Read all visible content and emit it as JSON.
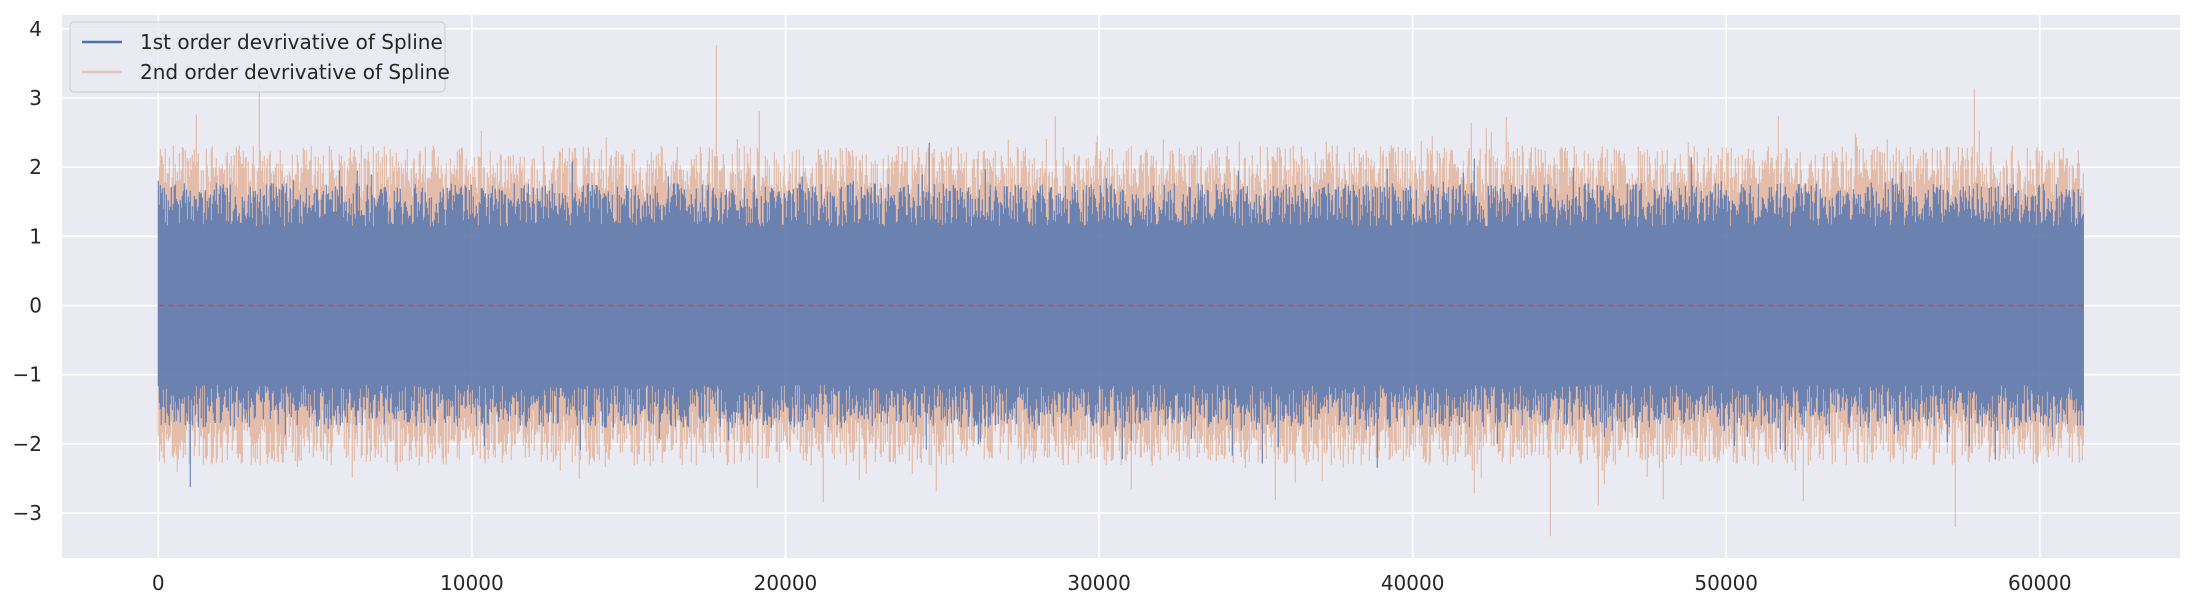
{
  "chart_data": {
    "type": "line",
    "title": "",
    "xlabel": "",
    "ylabel": "",
    "xlim": [
      -3070,
      64470
    ],
    "ylim": [
      -3.65,
      4.2
    ],
    "x_ticks": [
      0,
      10000,
      20000,
      30000,
      40000,
      50000,
      60000
    ],
    "y_ticks": [
      -3,
      -2,
      -1,
      0,
      1,
      2,
      3,
      4
    ],
    "grid": true,
    "legend_position": "upper-left",
    "n_points": 61400,
    "zero_line": {
      "y": 0,
      "color": "#c44e52"
    },
    "series": [
      {
        "name": "1st order devrivative of Spline",
        "color": "#4c72b0",
        "std": 0.65,
        "typical_range": [
          -2.1,
          2.3
        ],
        "extreme_range": [
          -2.8,
          2.7
        ]
      },
      {
        "name": "2nd order devrivative of Spline",
        "color": "#dd8452",
        "opacity": 0.2,
        "std": 0.85,
        "typical_range": [
          -2.7,
          2.9
        ],
        "extreme_range": [
          -3.35,
          3.9
        ]
      }
    ]
  },
  "colors": {
    "background": "#eaeaf2",
    "grid": "#ffffff",
    "text": "#262626"
  }
}
